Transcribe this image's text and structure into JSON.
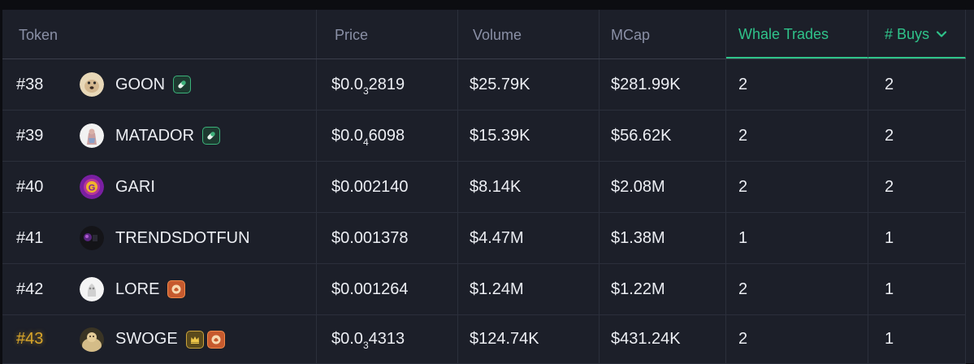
{
  "headers": {
    "token": "Token",
    "price": "Price",
    "volume": "Volume",
    "mcap": "MCap",
    "whale": "Whale Trades",
    "buys": "# Buys"
  },
  "rows": [
    {
      "rank": "#38",
      "name": "GOON",
      "price_pre": "$0.0",
      "price_sub": "3",
      "price_post": "2819",
      "volume": "$25.79K",
      "mcap": "$281.99K",
      "whale": "2",
      "buys": "2"
    },
    {
      "rank": "#39",
      "name": "MATADOR",
      "price_pre": "$0.0",
      "price_sub": "4",
      "price_post": "6098",
      "volume": "$15.39K",
      "mcap": "$56.62K",
      "whale": "2",
      "buys": "2"
    },
    {
      "rank": "#40",
      "name": "GARI",
      "price_pre": "$0.002140",
      "price_sub": "",
      "price_post": "",
      "volume": "$8.14K",
      "mcap": "$2.08M",
      "whale": "2",
      "buys": "2"
    },
    {
      "rank": "#41",
      "name": "TRENDSDOTFUN",
      "price_pre": "$0.001378",
      "price_sub": "",
      "price_post": "",
      "volume": "$4.47M",
      "mcap": "$1.38M",
      "whale": "1",
      "buys": "1"
    },
    {
      "rank": "#42",
      "name": "LORE",
      "price_pre": "$0.001264",
      "price_sub": "",
      "price_post": "",
      "volume": "$1.24M",
      "mcap": "$1.22M",
      "whale": "2",
      "buys": "1"
    },
    {
      "rank": "#43",
      "name": "SWOGE",
      "price_pre": "$0.0",
      "price_sub": "3",
      "price_post": "4313",
      "volume": "$124.74K",
      "mcap": "$431.24K",
      "whale": "2",
      "buys": "1"
    }
  ],
  "colors": {
    "accent": "#2fc38a",
    "gold_rank": "#d8a52a",
    "background": "#1c1f29"
  },
  "icons": [
    "pill-icon",
    "fire-icon",
    "crown-icon",
    "chevron-down-icon"
  ]
}
